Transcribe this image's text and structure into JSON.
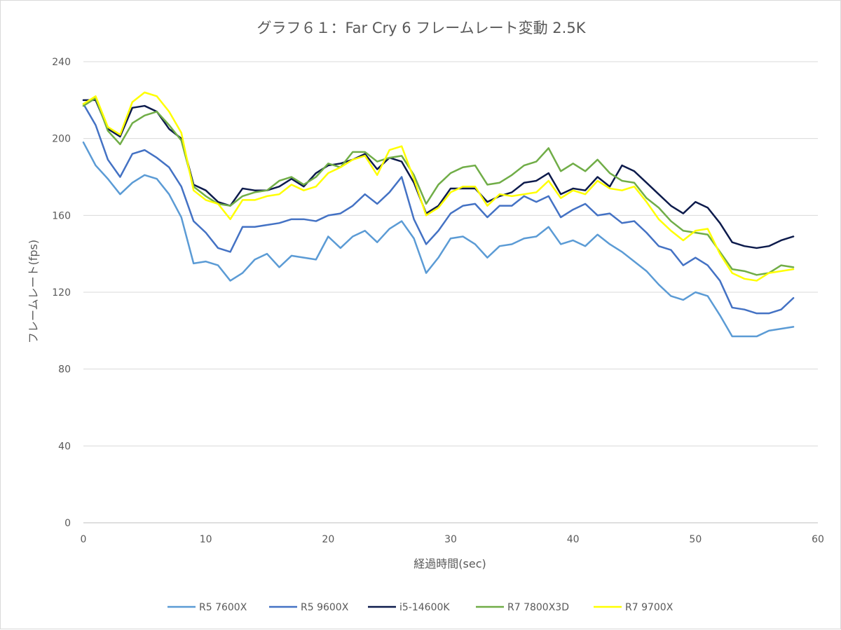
{
  "chart_data": {
    "type": "line",
    "title": "グラフ６１：Far Cry 6 フレームレート変動 2.5K",
    "xlabel": "経過時間(sec)",
    "ylabel": "フレームレート(fps)",
    "xlim": [
      0,
      60
    ],
    "ylim": [
      0,
      240
    ],
    "xticks": [
      0,
      10,
      20,
      30,
      40,
      50,
      60
    ],
    "yticks": [
      0,
      40,
      80,
      120,
      160,
      200,
      240
    ],
    "grid": "horizontal",
    "legend_position": "bottom",
    "x": [
      0,
      1,
      2,
      3,
      4,
      5,
      6,
      7,
      8,
      9,
      10,
      11,
      12,
      13,
      14,
      15,
      16,
      17,
      18,
      19,
      20,
      21,
      22,
      23,
      24,
      25,
      26,
      27,
      28,
      29,
      30,
      31,
      32,
      33,
      34,
      35,
      36,
      37,
      38,
      39,
      40,
      41,
      42,
      43,
      44,
      45,
      46,
      47,
      48,
      49,
      50,
      51,
      52,
      53,
      54,
      55,
      56,
      57,
      58
    ],
    "series": [
      {
        "name": "R5 7600X",
        "color": "#5B9BD5",
        "values": [
          198,
          186,
          179,
          171,
          177,
          181,
          179,
          171,
          159,
          135,
          136,
          134,
          126,
          130,
          137,
          140,
          133,
          139,
          138,
          137,
          149,
          143,
          149,
          152,
          146,
          153,
          157,
          148,
          130,
          138,
          148,
          149,
          145,
          138,
          144,
          145,
          148,
          149,
          154,
          145,
          147,
          144,
          150,
          145,
          141,
          136,
          131,
          124,
          118,
          116,
          120,
          118,
          108,
          97,
          97,
          97,
          100,
          101,
          102
        ]
      },
      {
        "name": "R5 9600X",
        "color": "#4472C4",
        "values": [
          218,
          207,
          189,
          180,
          192,
          194,
          190,
          185,
          175,
          157,
          151,
          143,
          141,
          154,
          154,
          155,
          156,
          158,
          158,
          157,
          160,
          161,
          165,
          171,
          166,
          172,
          180,
          158,
          145,
          152,
          161,
          165,
          166,
          159,
          165,
          165,
          170,
          167,
          170,
          159,
          163,
          166,
          160,
          161,
          156,
          157,
          151,
          144,
          142,
          134,
          138,
          134,
          126,
          112,
          111,
          109,
          109,
          111,
          117
        ]
      },
      {
        "name": "i5-14600K",
        "color": "#0D1B4C",
        "values": [
          220,
          220,
          205,
          201,
          216,
          217,
          214,
          205,
          200,
          176,
          173,
          167,
          165,
          174,
          173,
          173,
          175,
          179,
          175,
          182,
          186,
          187,
          189,
          192,
          184,
          190,
          188,
          177,
          161,
          165,
          174,
          174,
          174,
          167,
          170,
          172,
          177,
          178,
          182,
          171,
          174,
          173,
          180,
          175,
          186,
          183,
          177,
          171,
          165,
          161,
          167,
          164,
          156,
          146,
          144,
          143,
          144,
          147,
          149
        ]
      },
      {
        "name": "R7 7800X3D",
        "color": "#70AD47",
        "values": [
          217,
          221,
          204,
          197,
          208,
          212,
          214,
          207,
          199,
          175,
          170,
          166,
          165,
          170,
          172,
          173,
          178,
          180,
          176,
          180,
          187,
          185,
          193,
          193,
          188,
          190,
          191,
          181,
          166,
          176,
          182,
          185,
          186,
          176,
          177,
          181,
          186,
          188,
          195,
          183,
          187,
          183,
          189,
          182,
          178,
          177,
          169,
          164,
          157,
          152,
          151,
          150,
          141,
          132,
          131,
          129,
          130,
          134,
          133
        ]
      },
      {
        "name": "R7 9700X",
        "color": "#FFFF00",
        "values": [
          218,
          222,
          206,
          202,
          219,
          224,
          222,
          214,
          203,
          173,
          168,
          166,
          158,
          168,
          168,
          170,
          171,
          176,
          173,
          175,
          182,
          185,
          189,
          191,
          181,
          194,
          196,
          179,
          160,
          164,
          172,
          175,
          175,
          165,
          171,
          170,
          171,
          172,
          178,
          169,
          173,
          171,
          178,
          174,
          173,
          175,
          167,
          158,
          152,
          147,
          152,
          153,
          140,
          130,
          127,
          126,
          130,
          131,
          132
        ]
      }
    ]
  }
}
